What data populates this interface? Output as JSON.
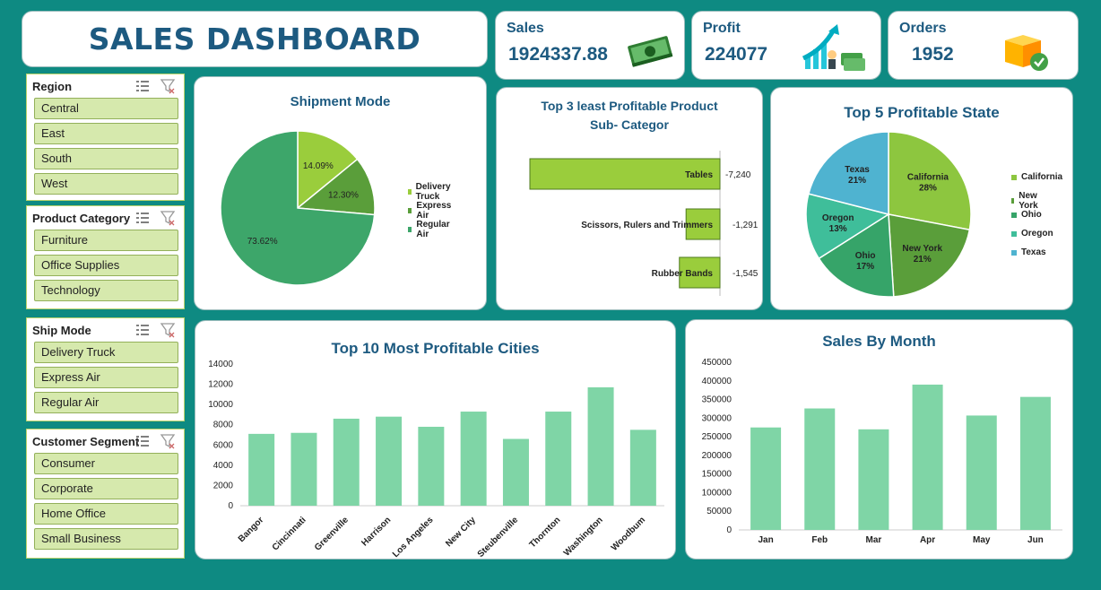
{
  "title": "SALES DASHBOARD",
  "kpis": [
    {
      "label": "Sales",
      "value": "1924337.88",
      "icon": "money-stack-icon"
    },
    {
      "label": "Profit",
      "value": "224077",
      "icon": "profit-growth-icon"
    },
    {
      "label": "Orders",
      "value": "1952",
      "icon": "package-check-icon"
    }
  ],
  "slicers": [
    {
      "title": "Region",
      "items": [
        "Central",
        "East",
        "South",
        "West"
      ]
    },
    {
      "title": "Product Category",
      "items": [
        "Furniture",
        "Office Supplies",
        "Technology"
      ]
    },
    {
      "title": "Ship Mode",
      "items": [
        "Delivery Truck",
        "Express Air",
        "Regular Air"
      ]
    },
    {
      "title": "Customer Segment",
      "items": [
        "Consumer",
        "Corporate",
        "Home Office",
        "Small Business"
      ]
    }
  ],
  "colors": {
    "background": "#0e8a82",
    "title": "#1d5a80",
    "slicer_item": "#d6e9ad",
    "bar_green": "#8dc63f",
    "bar_mint": "#7fd5a6"
  },
  "shipment": {
    "title": "Shipment Mode",
    "chart_data": {
      "type": "pie",
      "labels": [
        "Delivery Truck",
        "Express Air",
        "Regular Air"
      ],
      "values": [
        14.09,
        12.3,
        73.62
      ],
      "value_labels": [
        "14.09%",
        "12.30%",
        "73.62%"
      ],
      "colors": [
        "#9acd3c",
        "#5a9e3a",
        "#3da66a"
      ],
      "legend": "right"
    }
  },
  "least": {
    "title_line1": "Top 3 least Profitable Product",
    "title_line2": "Sub- Categor",
    "chart_data": {
      "type": "bar",
      "orientation": "horizontal",
      "categories": [
        "Tables",
        "Scissors, Rulers and Trimmers",
        "Rubber Bands"
      ],
      "values": [
        -7240,
        -1291,
        -1545
      ],
      "value_labels": [
        "-7,240",
        "-1,291",
        "-1,545"
      ]
    }
  },
  "states": {
    "title": "Top 5 Profitable State",
    "chart_data": {
      "type": "pie",
      "labels": [
        "California",
        "New York",
        "Ohio",
        "Oregon",
        "Texas"
      ],
      "values": [
        28,
        21,
        17,
        13,
        21
      ],
      "value_labels": [
        "28%",
        "21%",
        "17%",
        "13%",
        "21%"
      ],
      "colors": [
        "#8dc63f",
        "#5a9e3a",
        "#36a469",
        "#3fbe9a",
        "#4fb3d0"
      ],
      "legend": "right"
    }
  },
  "cities": {
    "title": "Top 10 Most Profitable Cities",
    "chart_data": {
      "type": "bar",
      "categories": [
        "Bangor",
        "Cincinnati",
        "Greenville",
        "Harrison",
        "Los Angeles",
        "New City",
        "Steubenville",
        "Thornton",
        "Washington",
        "Woodbum"
      ],
      "values": [
        7100,
        7200,
        8600,
        8800,
        7800,
        9300,
        6600,
        9300,
        11700,
        7500
      ],
      "ylim": [
        0,
        14000
      ],
      "yticks": [
        "14000",
        "12000",
        "10000",
        "8000",
        "6000",
        "4000",
        "2000",
        "0"
      ]
    }
  },
  "months": {
    "title": "Sales By Month",
    "chart_data": {
      "type": "bar",
      "categories": [
        "Jan",
        "Feb",
        "Mar",
        "Apr",
        "May",
        "Jun"
      ],
      "values": [
        275000,
        326000,
        270000,
        390000,
        307000,
        357000
      ],
      "ylim": [
        0,
        450000
      ],
      "yticks": [
        "450000",
        "400000",
        "350000",
        "300000",
        "250000",
        "200000",
        "150000",
        "100000",
        "50000",
        "0"
      ]
    }
  }
}
